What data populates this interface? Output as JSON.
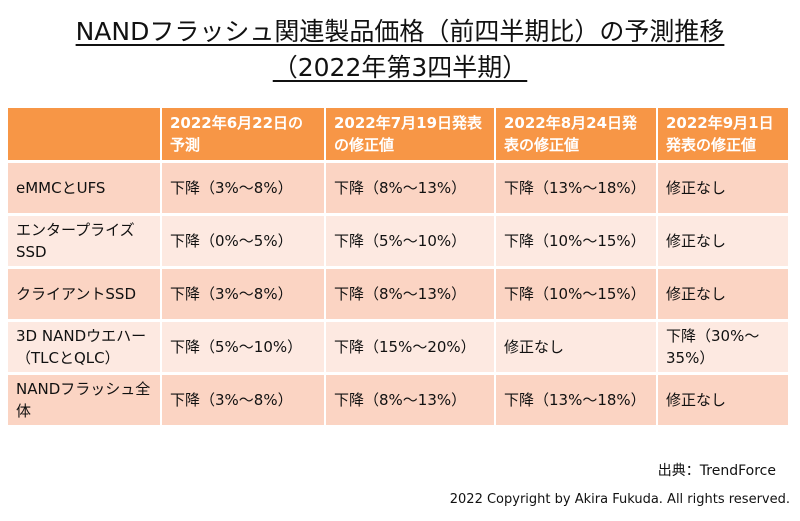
{
  "title": {
    "line1": "NANDフラッシュ関連製品価格（前四半期比）の予測推移",
    "line2": "（2022年第3四半期）"
  },
  "table": {
    "headers": [
      "",
      "2022年6月22日の予測",
      "2022年7月19日発表の修正値",
      "2022年8月24日発表の修正値",
      "2022年9月1日発表の修正値"
    ],
    "rows": [
      [
        "eMMCとUFS",
        "下降（3%～8%）",
        "下降（8%～13%）",
        "下降（13%～18%）",
        "修正なし"
      ],
      [
        "エンタープライズSSD",
        "下降（0%～5%）",
        "下降（5%～10%）",
        "下降（10%～15%）",
        "修正なし"
      ],
      [
        "クライアントSSD",
        "下降（3%～8%）",
        "下降（8%～13%）",
        "下降（10%～15%）",
        "修正なし"
      ],
      [
        "3D NANDウエハー（TLCとQLC）",
        "下降（5%～10%）",
        "下降（15%～20%）",
        "修正なし",
        "下降（30%～35%）"
      ],
      [
        "NANDフラッシュ全体",
        "下降（3%～8%）",
        "下降（8%～13%）",
        "下降（13%～18%）",
        "修正なし"
      ]
    ]
  },
  "source": "出典：TrendForce",
  "copyright": "2022 Copyright by Akira Fukuda. All rights reserved.",
  "colors": {
    "header": "#F79646",
    "row_dark": "#FBD4C3",
    "row_light": "#FDE9E1"
  }
}
